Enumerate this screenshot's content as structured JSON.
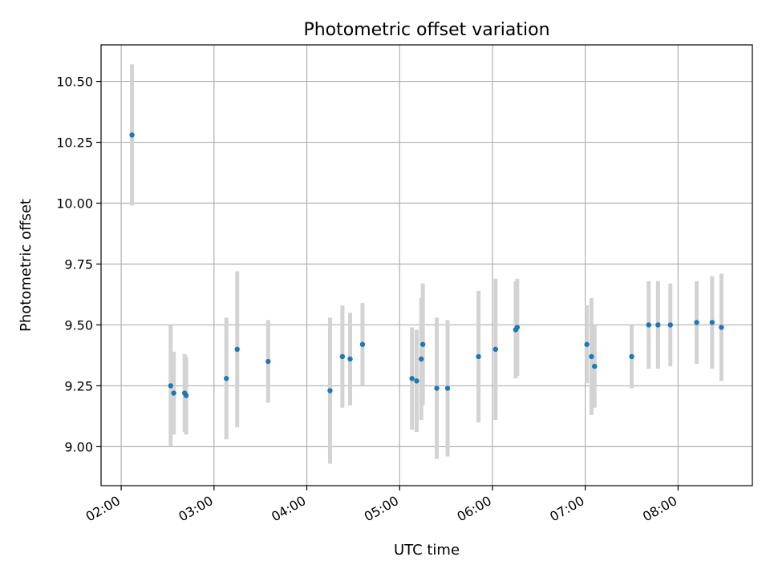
{
  "chart_data": {
    "type": "scatter",
    "title": "Photometric offset variation",
    "xlabel": "UTC time",
    "ylabel": "Photometric offset",
    "x_ticks": [
      "02:00",
      "03:00",
      "04:00",
      "05:00",
      "06:00",
      "07:00",
      "08:00"
    ],
    "y_ticks": [
      "9.00",
      "9.25",
      "9.50",
      "9.75",
      "10.00",
      "10.25",
      "10.50"
    ],
    "xlim": [
      "01:47",
      "08:48"
    ],
    "ylim": [
      8.84,
      10.65
    ],
    "grid": true,
    "point_color": "#1f77b4",
    "errorbar_color": "#d3d3d3",
    "points": [
      {
        "x": "02:07",
        "y": 10.28,
        "err": 0.29
      },
      {
        "x": "02:32",
        "y": 9.25,
        "err": 0.25
      },
      {
        "x": "02:34",
        "y": 9.22,
        "err": 0.17
      },
      {
        "x": "02:41",
        "y": 9.22,
        "err": 0.16
      },
      {
        "x": "02:42",
        "y": 9.21,
        "err": 0.16
      },
      {
        "x": "03:08",
        "y": 9.28,
        "err": 0.25
      },
      {
        "x": "03:15",
        "y": 9.4,
        "err": 0.32
      },
      {
        "x": "03:35",
        "y": 9.35,
        "err": 0.17
      },
      {
        "x": "04:15",
        "y": 9.23,
        "err": 0.3
      },
      {
        "x": "04:23",
        "y": 9.37,
        "err": 0.21
      },
      {
        "x": "04:28",
        "y": 9.36,
        "err": 0.19
      },
      {
        "x": "04:36",
        "y": 9.42,
        "err": 0.17
      },
      {
        "x": "05:08",
        "y": 9.28,
        "err": 0.21
      },
      {
        "x": "05:11",
        "y": 9.27,
        "err": 0.21
      },
      {
        "x": "05:14",
        "y": 9.36,
        "err": 0.25
      },
      {
        "x": "05:15",
        "y": 9.42,
        "err": 0.25
      },
      {
        "x": "05:24",
        "y": 9.24,
        "err": 0.29
      },
      {
        "x": "05:31",
        "y": 9.24,
        "err": 0.28
      },
      {
        "x": "05:51",
        "y": 9.37,
        "err": 0.27
      },
      {
        "x": "06:02",
        "y": 9.4,
        "err": 0.29
      },
      {
        "x": "06:15",
        "y": 9.48,
        "err": 0.2
      },
      {
        "x": "06:16",
        "y": 9.49,
        "err": 0.2
      },
      {
        "x": "07:01",
        "y": 9.42,
        "err": 0.16
      },
      {
        "x": "07:04",
        "y": 9.37,
        "err": 0.24
      },
      {
        "x": "07:06",
        "y": 9.33,
        "err": 0.17
      },
      {
        "x": "07:30",
        "y": 9.37,
        "err": 0.13
      },
      {
        "x": "07:41",
        "y": 9.5,
        "err": 0.18
      },
      {
        "x": "07:47",
        "y": 9.5,
        "err": 0.18
      },
      {
        "x": "07:55",
        "y": 9.5,
        "err": 0.17
      },
      {
        "x": "08:12",
        "y": 9.51,
        "err": 0.17
      },
      {
        "x": "08:22",
        "y": 9.51,
        "err": 0.19
      },
      {
        "x": "08:28",
        "y": 9.49,
        "err": 0.22
      }
    ]
  }
}
